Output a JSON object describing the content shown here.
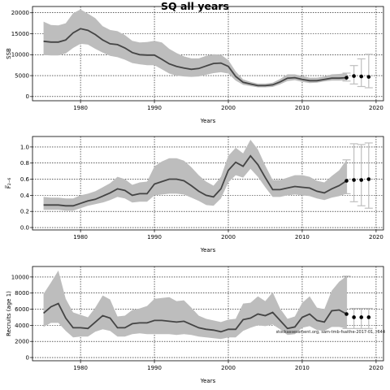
{
  "title": "SQ all years",
  "source_note": "stockassessment.org, sam-tmb-fsaithe-2017-01, r644",
  "colors": {
    "band": "#bdbdbd",
    "line": "#444444",
    "forecast_band": "#cfcfcf",
    "forecast_bar": "#bfbfbf",
    "point": "#000000"
  },
  "chart_data": [
    {
      "type": "line",
      "id": "ssb",
      "ylabel": "SSB",
      "xlabel": "Years",
      "xlim": [
        1973.5,
        2021
      ],
      "ylim": [
        -1000,
        21500
      ],
      "xticks": [
        1980,
        1990,
        2000,
        2010,
        2020
      ],
      "yticks": [
        0,
        5000,
        10000,
        15000,
        20000
      ],
      "grid": true,
      "x": [
        1975,
        1976,
        1977,
        1978,
        1979,
        1980,
        1981,
        1982,
        1983,
        1984,
        1985,
        1986,
        1987,
        1988,
        1989,
        1990,
        1991,
        1992,
        1993,
        1994,
        1995,
        1996,
        1997,
        1998,
        1999,
        2000,
        2001,
        2002,
        2003,
        2004,
        2005,
        2006,
        2007,
        2008,
        2009,
        2010,
        2011,
        2012,
        2013,
        2014,
        2015,
        2016
      ],
      "estimate": [
        13200,
        13000,
        13000,
        13500,
        15200,
        16200,
        15800,
        14800,
        13500,
        12600,
        12400,
        11600,
        10500,
        10000,
        9900,
        9900,
        8900,
        7800,
        7200,
        6800,
        6500,
        6700,
        7300,
        7900,
        8000,
        7200,
        4800,
        3400,
        3000,
        2600,
        2600,
        2800,
        3500,
        4400,
        4500,
        4100,
        3800,
        3800,
        4100,
        4400,
        4400,
        4500
      ],
      "lower": [
        9900,
        9800,
        9800,
        10300,
        11600,
        12600,
        12400,
        11400,
        10500,
        9700,
        9400,
        8800,
        8000,
        7700,
        7500,
        7500,
        6500,
        5500,
        5000,
        4800,
        4700,
        4800,
        5200,
        5600,
        5800,
        5500,
        3800,
        2800,
        2500,
        2200,
        2200,
        2300,
        2900,
        3700,
        3900,
        3500,
        3200,
        3300,
        3600,
        3800,
        3800,
        3900
      ],
      "upper": [
        17900,
        17100,
        17000,
        17500,
        19900,
        20800,
        19800,
        18700,
        16800,
        15900,
        15600,
        14700,
        13300,
        12900,
        13000,
        13300,
        12900,
        11400,
        10400,
        9600,
        9100,
        9100,
        9700,
        10100,
        10000,
        8700,
        6000,
        4100,
        3500,
        3100,
        3100,
        3300,
        4200,
        5300,
        5300,
        4900,
        4500,
        4500,
        4800,
        5300,
        5400,
        5600
      ],
      "forecast": {
        "x": [
          2016,
          2017,
          2018,
          2019
        ],
        "estimate": [
          4500,
          4900,
          4800,
          4700
        ],
        "lower": [
          3700,
          3000,
          2400,
          2100
        ],
        "upper": [
          5600,
          7400,
          9000,
          10100
        ]
      }
    },
    {
      "type": "line",
      "id": "fbar",
      "ylabel": "F̅₂₋₆",
      "xlabel": "Years",
      "xlim": [
        1973.5,
        2021
      ],
      "ylim": [
        -0.03,
        1.13
      ],
      "xticks": [
        1980,
        1990,
        2000,
        2010,
        2020
      ],
      "yticks": [
        "0.0",
        "0.2",
        "0.4",
        "0.6",
        "0.8",
        "1.0"
      ],
      "grid": true,
      "x": [
        1975,
        1976,
        1977,
        1978,
        1979,
        1980,
        1981,
        1982,
        1983,
        1984,
        1985,
        1986,
        1987,
        1988,
        1989,
        1990,
        1991,
        1992,
        1993,
        1994,
        1995,
        1996,
        1997,
        1998,
        1999,
        2000,
        2001,
        2002,
        2003,
        2004,
        2005,
        2006,
        2007,
        2008,
        2009,
        2010,
        2011,
        2012,
        2013,
        2014,
        2015,
        2016
      ],
      "estimate": [
        0.28,
        0.28,
        0.28,
        0.27,
        0.27,
        0.3,
        0.33,
        0.35,
        0.39,
        0.43,
        0.48,
        0.46,
        0.4,
        0.42,
        0.42,
        0.54,
        0.57,
        0.6,
        0.6,
        0.58,
        0.52,
        0.45,
        0.4,
        0.38,
        0.48,
        0.71,
        0.81,
        0.76,
        0.89,
        0.78,
        0.62,
        0.47,
        0.47,
        0.49,
        0.51,
        0.5,
        0.49,
        0.45,
        0.43,
        0.48,
        0.52,
        0.58
      ],
      "lower": [
        0.22,
        0.22,
        0.22,
        0.21,
        0.21,
        0.24,
        0.27,
        0.29,
        0.31,
        0.34,
        0.38,
        0.36,
        0.31,
        0.32,
        0.32,
        0.4,
        0.41,
        0.42,
        0.42,
        0.41,
        0.37,
        0.33,
        0.28,
        0.27,
        0.36,
        0.56,
        0.65,
        0.62,
        0.73,
        0.63,
        0.5,
        0.38,
        0.38,
        0.4,
        0.41,
        0.4,
        0.39,
        0.36,
        0.34,
        0.37,
        0.39,
        0.42
      ],
      "upper": [
        0.38,
        0.37,
        0.37,
        0.36,
        0.36,
        0.4,
        0.42,
        0.45,
        0.5,
        0.55,
        0.63,
        0.6,
        0.53,
        0.56,
        0.57,
        0.76,
        0.82,
        0.86,
        0.86,
        0.83,
        0.75,
        0.65,
        0.57,
        0.52,
        0.63,
        0.89,
        0.99,
        0.92,
        1.09,
        0.97,
        0.77,
        0.59,
        0.59,
        0.62,
        0.65,
        0.65,
        0.63,
        0.58,
        0.56,
        0.64,
        0.71,
        0.84
      ],
      "forecast": {
        "x": [
          2016,
          2017,
          2018,
          2019
        ],
        "estimate": [
          0.58,
          0.59,
          0.59,
          0.6
        ],
        "lower": [
          0.42,
          0.32,
          0.27,
          0.24
        ],
        "upper": [
          0.84,
          1.04,
          1.03,
          1.05
        ]
      }
    },
    {
      "type": "line",
      "id": "recruits",
      "ylabel": "Recruits (age 1)",
      "xlabel": "Years",
      "xlim": [
        1973.5,
        2021
      ],
      "ylim": [
        -400,
        11300
      ],
      "xticks": [
        1980,
        1990,
        2000,
        2010,
        2020
      ],
      "yticks": [
        0,
        2000,
        4000,
        6000,
        8000,
        10000
      ],
      "grid": true,
      "x": [
        1975,
        1976,
        1977,
        1978,
        1979,
        1980,
        1981,
        1982,
        1983,
        1984,
        1985,
        1986,
        1987,
        1988,
        1989,
        1990,
        1991,
        1992,
        1993,
        1994,
        1995,
        1996,
        1997,
        1998,
        1999,
        2000,
        2001,
        2002,
        2003,
        2004,
        2005,
        2006,
        2007,
        2008,
        2009,
        2010,
        2011,
        2012,
        2013,
        2014,
        2015,
        2016
      ],
      "estimate": [
        5500,
        6300,
        6700,
        4900,
        3700,
        3700,
        3600,
        4400,
        5200,
        4900,
        3700,
        3700,
        4200,
        4300,
        4300,
        4600,
        4600,
        4500,
        4400,
        4500,
        4100,
        3700,
        3500,
        3400,
        3200,
        3500,
        3500,
        4700,
        4900,
        5400,
        5200,
        5600,
        4600,
        3600,
        3800,
        5000,
        5400,
        4600,
        4400,
        5800,
        5900,
        5400
      ],
      "lower": [
        3800,
        4300,
        4300,
        3300,
        2500,
        2600,
        2600,
        3200,
        3500,
        3300,
        2600,
        2600,
        2900,
        3000,
        2900,
        2900,
        2900,
        2900,
        2800,
        2900,
        2800,
        2600,
        2500,
        2400,
        2300,
        2500,
        2500,
        3300,
        3700,
        4000,
        3900,
        4100,
        3500,
        2800,
        2900,
        3700,
        3900,
        3400,
        3300,
        3800,
        3800,
        3600
      ],
      "upper": [
        7900,
        9300,
        10800,
        7300,
        5600,
        5300,
        5000,
        6200,
        7700,
        7200,
        5100,
        5200,
        5900,
        6100,
        6400,
        7300,
        7400,
        7500,
        7000,
        7100,
        6200,
        5200,
        4800,
        4600,
        4400,
        4700,
        4800,
        6700,
        6800,
        7600,
        7000,
        8100,
        6100,
        4800,
        5100,
        6800,
        7600,
        6200,
        6000,
        8300,
        9400,
        10100
      ],
      "forecast": {
        "x": [
          2016,
          2017,
          2018,
          2019
        ],
        "estimate": [
          5400,
          5000,
          5000,
          5000
        ],
        "lower": [
          3600,
          3600,
          3600,
          3600
        ],
        "upper": [
          10100,
          6100,
          6100,
          6100
        ]
      }
    }
  ]
}
